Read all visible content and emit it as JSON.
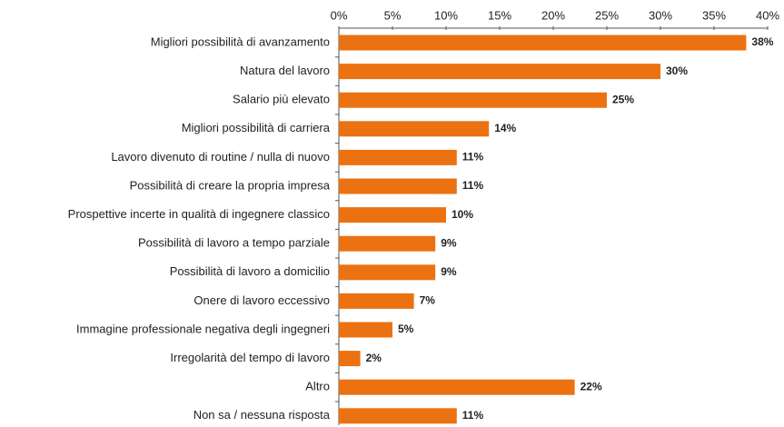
{
  "chart_data": {
    "type": "bar",
    "orientation": "horizontal",
    "categories": [
      "Migliori possibilità di avanzamento",
      "Natura del lavoro",
      "Salario più elevato",
      "Migliori possibilità di carriera",
      "Lavoro divenuto di routine / nulla di nuovo",
      "Possibilità di creare la propria impresa",
      "Prospettive incerte in qualità di ingegnere classico",
      "Possibilità di lavoro a tempo parziale",
      "Possibilità di lavoro a domicilio",
      "Onere di lavoro eccessivo",
      "Immagine professionale negativa degli ingegneri",
      "Irregolarità del tempo di lavoro",
      "Altro",
      "Non sa / nessuna risposta"
    ],
    "values": [
      38,
      30,
      25,
      14,
      11,
      11,
      10,
      9,
      9,
      7,
      5,
      2,
      22,
      11
    ],
    "value_labels": [
      "38%",
      "30%",
      "25%",
      "14%",
      "11%",
      "11%",
      "10%",
      "9%",
      "9%",
      "7%",
      "5%",
      "2%",
      "22%",
      "11%"
    ],
    "color": "#ec7211",
    "xlim": [
      0,
      40
    ],
    "xticks": [
      {
        "value": 0,
        "label": "0%"
      },
      {
        "value": 5,
        "label": "5%"
      },
      {
        "value": 10,
        "label": "10%"
      },
      {
        "value": 15,
        "label": "15%"
      },
      {
        "value": 20,
        "label": "20%"
      },
      {
        "value": 25,
        "label": "25%"
      },
      {
        "value": 30,
        "label": "30%"
      },
      {
        "value": 35,
        "label": "35%"
      },
      {
        "value": 40,
        "label": "40%"
      }
    ],
    "grid": false
  }
}
